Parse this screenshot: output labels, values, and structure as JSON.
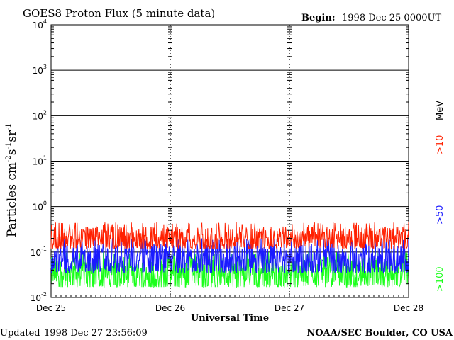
{
  "header": {
    "title": "GOES8 Proton Flux (5 minute data)",
    "begin_label": "Begin:",
    "begin_value": "1998 Dec 25 0000UT"
  },
  "footer": {
    "updated_label": "Updated",
    "updated_value": "1998 Dec 27 23:56:09",
    "source": "NOAA/SEC Boulder, CO USA"
  },
  "chart_data": {
    "type": "line",
    "title": "GOES8 Proton Flux (5 minute data)",
    "xlabel": "Universal Time",
    "ylabel": {
      "base": "Particles cm",
      "e1": "-2",
      "mid1": "s",
      "e2": "-1",
      "mid2": "sr",
      "e3": "-1"
    },
    "y_scale": "log",
    "ylim": [
      0.01,
      10000
    ],
    "y_ticks": [
      {
        "value": 0.01,
        "base": "10",
        "exp": "-2"
      },
      {
        "value": 0.1,
        "base": "10",
        "exp": "-1"
      },
      {
        "value": 1,
        "base": "10",
        "exp": "0"
      },
      {
        "value": 10,
        "base": "10",
        "exp": "1"
      },
      {
        "value": 100,
        "base": "10",
        "exp": "2"
      },
      {
        "value": 1000,
        "base": "10",
        "exp": "3"
      },
      {
        "value": 10000,
        "base": "10",
        "exp": "4"
      }
    ],
    "x_ticks": [
      "Dec 25",
      "Dec 26",
      "Dec 27",
      "Dec 28"
    ],
    "xlim_days": [
      0,
      3
    ],
    "grid": true,
    "legend": {
      "position": "right",
      "unit": "MeV",
      "entries": [
        {
          "label": ">10",
          "color": "#ff2000"
        },
        {
          "label": ">50",
          "color": "#1a1aff"
        },
        {
          "label": ">100",
          "color": "#1aff1a"
        }
      ]
    },
    "series": [
      {
        "name": ">10 MeV",
        "color": "#ff2000",
        "typical": 0.2,
        "range": [
          0.12,
          0.45
        ]
      },
      {
        "name": ">50 MeV",
        "color": "#1a1aff",
        "typical": 0.07,
        "range": [
          0.035,
          0.2
        ]
      },
      {
        "name": ">100 MeV",
        "color": "#1aff1a",
        "typical": 0.035,
        "range": [
          0.017,
          0.1
        ]
      }
    ]
  }
}
